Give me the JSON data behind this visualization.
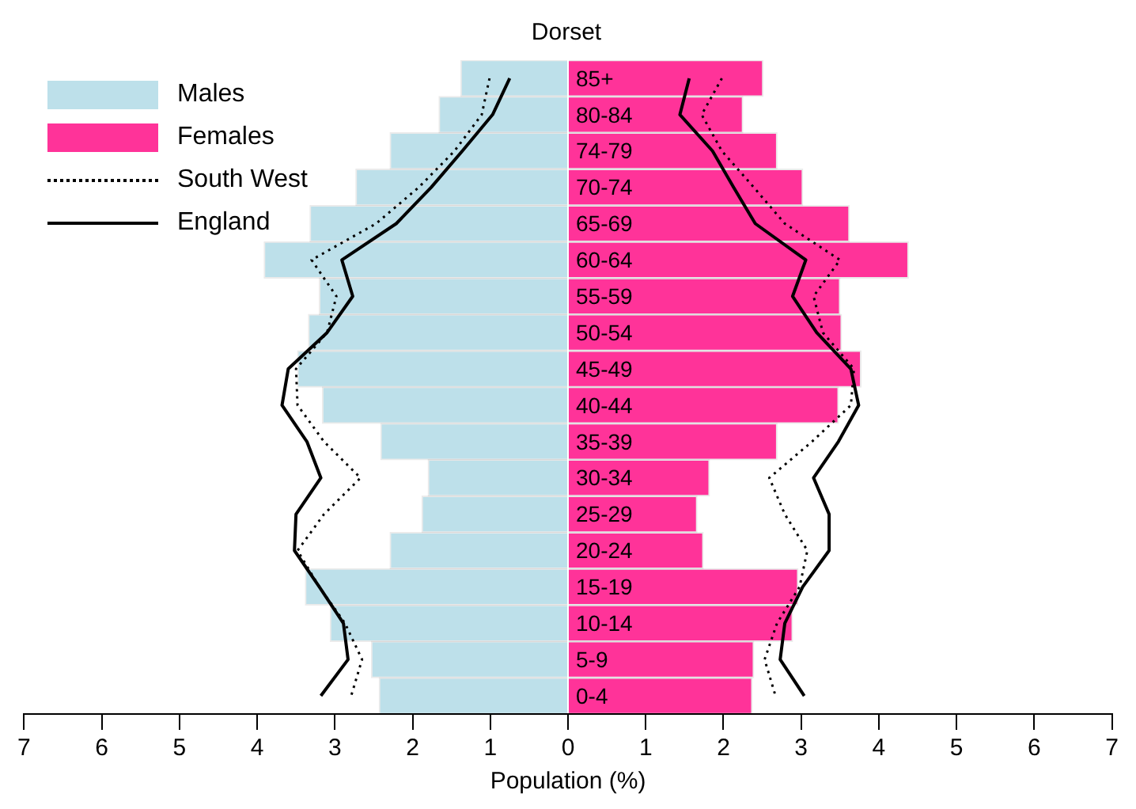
{
  "chart_data": {
    "type": "bar",
    "title": "Dorset",
    "xlabel": "Population (%)",
    "orientation": "horizontal",
    "stacked": true,
    "legend": "top left",
    "grid": false,
    "marker": "none",
    "categories": [
      "85+",
      "80-84",
      "74-79",
      "70-74",
      "65-69",
      "60-64",
      "55-59",
      "50-54",
      "45-49",
      "40-44",
      "35-39",
      "30-34",
      "25-29",
      "20-24",
      "15-19",
      "10-14",
      "5-9",
      "0-4"
    ],
    "xlim": [
      -7,
      7
    ],
    "xticks": [
      {
        "value": -7,
        "label": "7"
      },
      {
        "value": -6,
        "label": "6"
      },
      {
        "value": -5,
        "label": "5"
      },
      {
        "value": -4,
        "label": "4"
      },
      {
        "value": -3,
        "label": "3"
      },
      {
        "value": -2,
        "label": "2"
      },
      {
        "value": -1,
        "label": "1"
      },
      0,
      1,
      2,
      3,
      4,
      5,
      6,
      7
    ],
    "series": [
      {
        "name": "Males",
        "color": "#bde0ea",
        "values": [
          -1.38,
          -1.66,
          -2.29,
          -2.73,
          -3.32,
          -3.91,
          -3.2,
          -3.34,
          -3.48,
          -3.16,
          -2.41,
          -1.8,
          -1.88,
          -2.29,
          -3.38,
          -3.06,
          -2.53,
          -2.43
        ]
      },
      {
        "name": "Females",
        "color": "#ff3399",
        "values": [
          2.51,
          2.25,
          2.69,
          3.02,
          3.62,
          4.38,
          3.5,
          3.52,
          3.77,
          3.48,
          2.69,
          1.82,
          1.66,
          1.74,
          2.96,
          2.89,
          2.39,
          2.37
        ]
      },
      {
        "name": "South West",
        "type": "line",
        "line_style": "dotted",
        "color": "#000000",
        "values": [
          -1.01,
          -1.11,
          -1.46,
          -1.92,
          -2.47,
          -3.3,
          -2.98,
          -3.1,
          -3.5,
          -3.48,
          -3.14,
          -2.67,
          -3.14,
          -3.48,
          -3.2,
          -2.87,
          -2.65,
          -2.79
        ]
      },
      {
        "name": "England",
        "type": "line",
        "line_style": "solid",
        "color": "#000000",
        "values": [
          -0.75,
          -0.97,
          -1.36,
          -1.76,
          -2.21,
          -2.91,
          -2.77,
          -3.1,
          -3.6,
          -3.68,
          -3.36,
          -3.18,
          -3.5,
          -3.52,
          -3.2,
          -2.89,
          -2.83,
          -3.18
        ]
      },
      {
        "type": "line",
        "line_style": "dotted",
        "color": "#000000",
        "values": [
          1.98,
          1.72,
          1.98,
          2.39,
          2.79,
          3.5,
          3.16,
          3.28,
          3.68,
          3.64,
          3.14,
          2.59,
          2.79,
          3.08,
          2.98,
          2.69,
          2.53,
          2.67
        ]
      },
      {
        "type": "line",
        "line_style": "solid",
        "color": "#000000",
        "values": [
          1.56,
          1.44,
          1.86,
          2.13,
          2.41,
          3.06,
          2.89,
          3.2,
          3.64,
          3.74,
          3.48,
          3.16,
          3.36,
          3.36,
          3.02,
          2.79,
          2.73,
          3.04
        ]
      }
    ]
  }
}
